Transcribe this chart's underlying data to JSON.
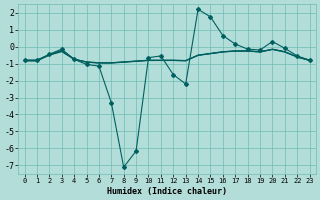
{
  "xlabel": "Humidex (Indice chaleur)",
  "bg_color": "#b3ddd8",
  "grid_color": "#6dbdb5",
  "line_color": "#006060",
  "xlim": [
    -0.5,
    23.5
  ],
  "ylim": [
    -7.5,
    2.5
  ],
  "xticks": [
    0,
    1,
    2,
    3,
    4,
    5,
    6,
    7,
    8,
    9,
    10,
    11,
    12,
    13,
    14,
    15,
    16,
    17,
    18,
    19,
    20,
    21,
    22,
    23
  ],
  "yticks": [
    -7,
    -6,
    -5,
    -4,
    -3,
    -2,
    -1,
    0,
    1,
    2
  ],
  "lines": [
    {
      "x": [
        0,
        1,
        2,
        3,
        4,
        5,
        6,
        7,
        8,
        9,
        10,
        11,
        12,
        13,
        14,
        15,
        16,
        17,
        18,
        19,
        20,
        21,
        22,
        23
      ],
      "y": [
        -0.8,
        -0.8,
        -0.45,
        -0.15,
        -0.75,
        -1.05,
        -1.15,
        -3.3,
        -7.1,
        -6.15,
        -0.65,
        -0.55,
        -1.65,
        -2.2,
        2.2,
        1.75,
        0.65,
        0.15,
        -0.15,
        -0.2,
        0.3,
        -0.1,
        -0.55,
        -0.8
      ],
      "marker": "D",
      "markersize": 2.0,
      "lw": 0.8
    },
    {
      "x": [
        0,
        1,
        2,
        3,
        4,
        5,
        6,
        7,
        8,
        9,
        10,
        11,
        12,
        13,
        14,
        15,
        16,
        17,
        18,
        19,
        20,
        21,
        22,
        23
      ],
      "y": [
        -0.8,
        -0.8,
        -0.5,
        -0.3,
        -0.75,
        -0.9,
        -0.95,
        -0.95,
        -0.9,
        -0.85,
        -0.8,
        -0.8,
        -0.8,
        -0.82,
        -0.5,
        -0.4,
        -0.3,
        -0.25,
        -0.25,
        -0.3,
        -0.15,
        -0.3,
        -0.6,
        -0.8
      ],
      "marker": null,
      "markersize": 0,
      "lw": 0.8
    },
    {
      "x": [
        0,
        1,
        2,
        3,
        4,
        5,
        6,
        7,
        8,
        9,
        10,
        11,
        12,
        13,
        14,
        15,
        16,
        17,
        18,
        19,
        20,
        21,
        22,
        23
      ],
      "y": [
        -0.85,
        -0.85,
        -0.5,
        -0.25,
        -0.75,
        -0.92,
        -0.97,
        -0.97,
        -0.92,
        -0.87,
        -0.82,
        -0.82,
        -0.82,
        -0.84,
        -0.52,
        -0.42,
        -0.32,
        -0.27,
        -0.27,
        -0.32,
        -0.17,
        -0.32,
        -0.62,
        -0.82
      ],
      "marker": null,
      "markersize": 0,
      "lw": 0.8
    },
    {
      "x": [
        0,
        1,
        2,
        3,
        4,
        5,
        6,
        7,
        8,
        9,
        10,
        11,
        12,
        13,
        14,
        15,
        16,
        17,
        18,
        19,
        20,
        21,
        22,
        23
      ],
      "y": [
        -0.82,
        -0.82,
        -0.48,
        -0.22,
        -0.73,
        -0.91,
        -0.96,
        -0.96,
        -0.91,
        -0.86,
        -0.81,
        -0.81,
        -0.81,
        -0.83,
        -0.51,
        -0.41,
        -0.31,
        -0.26,
        -0.26,
        -0.31,
        -0.16,
        -0.31,
        -0.61,
        -0.81
      ],
      "marker": null,
      "markersize": 0,
      "lw": 0.8
    }
  ]
}
